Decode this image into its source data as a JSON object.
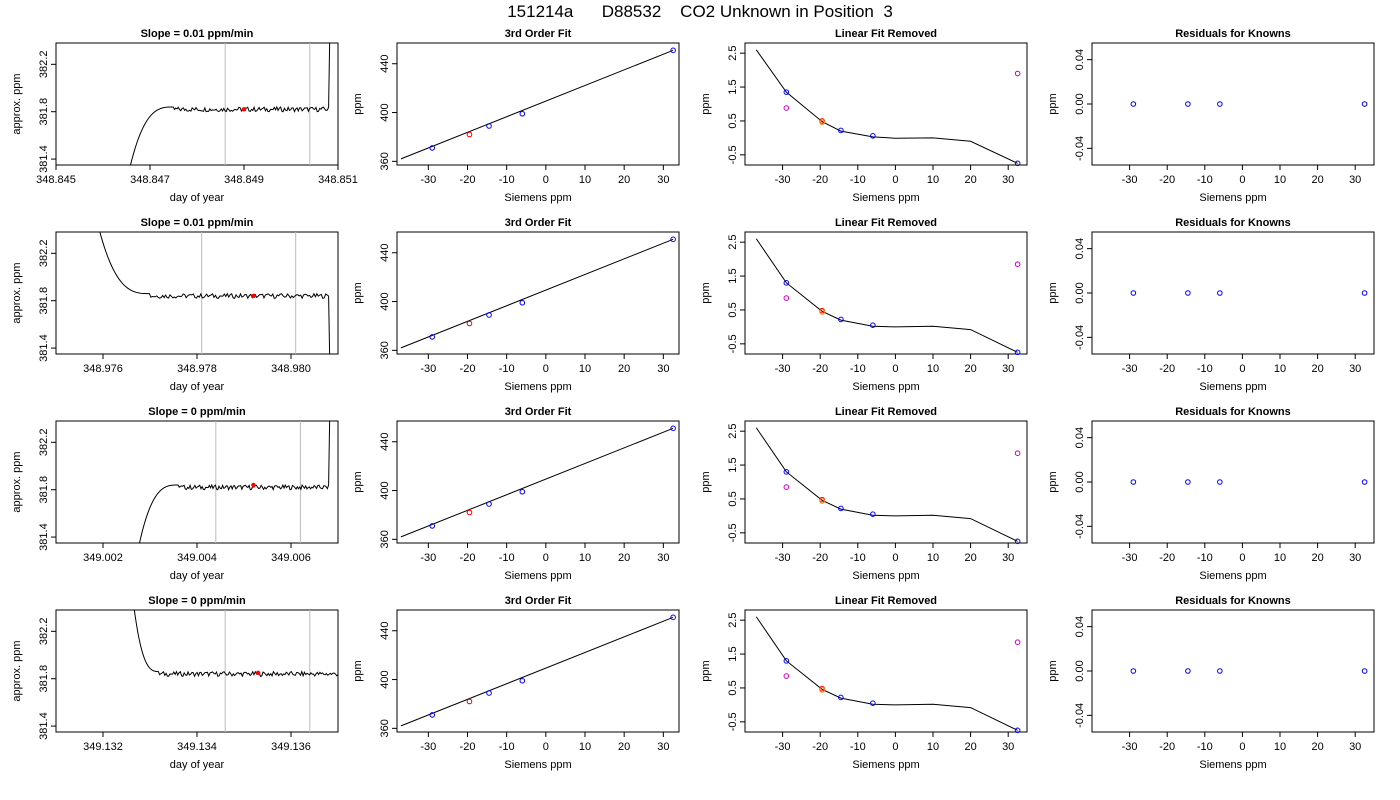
{
  "title": "151214a      D88532    CO2 Unknown in Position  3",
  "chart_data": [
    {
      "type": "line",
      "row": 0,
      "panel": "trace",
      "title": "Slope =  0.01  ppm/min",
      "xlabel": "day of year",
      "ylabel": "approx. ppm",
      "xlim": [
        348.845,
        348.851
      ],
      "ylim": [
        381.35,
        382.38
      ],
      "xticks": [
        "348.845",
        "348.847",
        "348.849",
        "348.851"
      ],
      "yticks": [
        "381.4",
        "381.8",
        "382.2"
      ],
      "vlines": [
        348.8486,
        348.8504
      ],
      "marker": {
        "x": 348.849,
        "y": 381.82,
        "color": "#ff0000"
      },
      "trace": {
        "start": 348.8465,
        "rise_end": 348.8475,
        "flat_end": 348.8508,
        "level": 381.84,
        "behavior": "rise_flat_rise"
      }
    },
    {
      "type": "scatter",
      "row": 0,
      "panel": "fit",
      "title": "3rd Order Fit",
      "xlabel": "Siemens ppm",
      "ylabel": "ppm",
      "xlim": [
        -38,
        34
      ],
      "ylim": [
        357,
        457
      ],
      "xticks": [
        "-30",
        "-20",
        "-10",
        "0",
        "10",
        "20",
        "30"
      ],
      "yticks": [
        "360",
        "400",
        "440"
      ],
      "line": [
        [
          -37,
          362
        ],
        [
          32.5,
          451
        ]
      ],
      "points": [
        {
          "x": -29,
          "y": 371,
          "color": "#0000ff"
        },
        {
          "x": -19.5,
          "y": 382,
          "color": "#ff0000"
        },
        {
          "x": -14.5,
          "y": 389,
          "color": "#0000ff"
        },
        {
          "x": -6,
          "y": 399,
          "color": "#0000ff"
        },
        {
          "x": 32.5,
          "y": 451,
          "color": "#0000ff"
        }
      ]
    },
    {
      "type": "scatter",
      "row": 0,
      "panel": "linfit",
      "title": "Linear Fit Removed",
      "xlabel": "Siemens ppm",
      "ylabel": "ppm",
      "xlim": [
        -40,
        35
      ],
      "ylim": [
        -0.8,
        2.8
      ],
      "xticks": [
        "-30",
        "-20",
        "-10",
        "0",
        "10",
        "20",
        "30"
      ],
      "yticks": [
        "-0.5",
        "0.5",
        "1.5",
        "2.5"
      ],
      "curve": [
        [
          -37,
          2.6
        ],
        [
          -29,
          1.35
        ],
        [
          -19.5,
          0.48
        ],
        [
          -14.5,
          0.2
        ],
        [
          -6,
          0.03
        ],
        [
          0,
          -0.01
        ],
        [
          10,
          0.0
        ],
        [
          20,
          -0.1
        ],
        [
          32.5,
          -0.75
        ]
      ],
      "points": [
        {
          "x": -29,
          "y": 1.35,
          "color": "#0000ff"
        },
        {
          "x": -29,
          "y": 0.88,
          "color": "#cc00cc"
        },
        {
          "x": -19.5,
          "y": 0.5,
          "color": "#ff0000"
        },
        {
          "x": -19.5,
          "y": 0.46,
          "color": "#ff8800"
        },
        {
          "x": -14.5,
          "y": 0.22,
          "color": "#0000ff"
        },
        {
          "x": -6,
          "y": 0.06,
          "color": "#0000ff"
        },
        {
          "x": 32.5,
          "y": 1.9,
          "color": "#cc00cc"
        },
        {
          "x": 32.5,
          "y": -0.75,
          "color": "#0000ff"
        }
      ]
    },
    {
      "type": "scatter",
      "row": 0,
      "panel": "resid",
      "title": "Residuals for Knowns",
      "xlabel": "Siemens ppm",
      "ylabel": "ppm",
      "xlim": [
        -40,
        35
      ],
      "ylim": [
        -0.055,
        0.055
      ],
      "xticks": [
        "-30",
        "-20",
        "-10",
        "0",
        "10",
        "20",
        "30"
      ],
      "yticks": [
        "-0.04",
        "0.00",
        "0.04"
      ],
      "points": [
        {
          "x": -29,
          "y": 0,
          "color": "#0000ff"
        },
        {
          "x": -14.5,
          "y": 0,
          "color": "#0000ff"
        },
        {
          "x": -6,
          "y": 0,
          "color": "#0000ff"
        },
        {
          "x": 32.5,
          "y": 0,
          "color": "#0000ff"
        }
      ]
    },
    {
      "type": "line",
      "row": 1,
      "panel": "trace",
      "title": "Slope =  0.01  ppm/min",
      "xlabel": "day of year",
      "ylabel": "approx. ppm",
      "xlim": [
        348.975,
        348.981
      ],
      "ylim": [
        381.35,
        382.38
      ],
      "xticks": [
        "348.976",
        "348.978",
        "348.980"
      ],
      "yticks": [
        "381.4",
        "381.8",
        "382.2"
      ],
      "vlines": [
        348.9781,
        348.9801
      ],
      "marker": {
        "x": 348.9792,
        "y": 381.84,
        "color": "#ff0000"
      },
      "trace": {
        "start": 348.9758,
        "rise_end": 348.977,
        "flat_end": 348.9808,
        "level": 381.86,
        "behavior": "fall_flat_fall"
      }
    },
    {
      "type": "scatter",
      "row": 1,
      "panel": "fit",
      "title": "3rd Order Fit",
      "xlabel": "Siemens ppm",
      "ylabel": "ppm",
      "xlim": [
        -38,
        34
      ],
      "ylim": [
        357,
        457
      ],
      "xticks": [
        "-30",
        "-20",
        "-10",
        "0",
        "10",
        "20",
        "30"
      ],
      "yticks": [
        "360",
        "400",
        "440"
      ],
      "line": [
        [
          -37,
          362
        ],
        [
          32.5,
          451
        ]
      ],
      "points": [
        {
          "x": -29,
          "y": 371,
          "color": "#0000ff"
        },
        {
          "x": -19.5,
          "y": 382,
          "color": "#ff0000"
        },
        {
          "x": -14.5,
          "y": 389,
          "color": "#0000ff"
        },
        {
          "x": -6,
          "y": 399,
          "color": "#0000ff"
        },
        {
          "x": 32.5,
          "y": 451,
          "color": "#0000ff"
        }
      ]
    },
    {
      "type": "scatter",
      "row": 1,
      "panel": "linfit",
      "title": "Linear Fit Removed",
      "xlabel": "Siemens ppm",
      "ylabel": "ppm",
      "xlim": [
        -40,
        35
      ],
      "ylim": [
        -0.8,
        2.8
      ],
      "xticks": [
        "-30",
        "-20",
        "-10",
        "0",
        "10",
        "20",
        "30"
      ],
      "yticks": [
        "-0.5",
        "0.5",
        "1.5",
        "2.5"
      ],
      "curve": [
        [
          -37,
          2.6
        ],
        [
          -29,
          1.3
        ],
        [
          -19.5,
          0.46
        ],
        [
          -14.5,
          0.2
        ],
        [
          -6,
          0.02
        ],
        [
          0,
          0.0
        ],
        [
          10,
          0.02
        ],
        [
          20,
          -0.08
        ],
        [
          32.5,
          -0.75
        ]
      ],
      "points": [
        {
          "x": -29,
          "y": 1.3,
          "color": "#0000ff"
        },
        {
          "x": -29,
          "y": 0.85,
          "color": "#cc00cc"
        },
        {
          "x": -19.5,
          "y": 0.48,
          "color": "#ff0000"
        },
        {
          "x": -19.5,
          "y": 0.44,
          "color": "#ff8800"
        },
        {
          "x": -14.5,
          "y": 0.22,
          "color": "#0000ff"
        },
        {
          "x": -6,
          "y": 0.05,
          "color": "#0000ff"
        },
        {
          "x": 32.5,
          "y": 1.85,
          "color": "#cc00cc"
        },
        {
          "x": 32.5,
          "y": -0.75,
          "color": "#0000ff"
        }
      ]
    },
    {
      "type": "scatter",
      "row": 1,
      "panel": "resid",
      "title": "Residuals for Knowns",
      "xlabel": "Siemens ppm",
      "ylabel": "ppm",
      "xlim": [
        -40,
        35
      ],
      "ylim": [
        -0.055,
        0.055
      ],
      "xticks": [
        "-30",
        "-20",
        "-10",
        "0",
        "10",
        "20",
        "30"
      ],
      "yticks": [
        "-0.04",
        "0.00",
        "0.04"
      ],
      "points": [
        {
          "x": -29,
          "y": 0,
          "color": "#0000ff"
        },
        {
          "x": -14.5,
          "y": 0,
          "color": "#0000ff"
        },
        {
          "x": -6,
          "y": 0,
          "color": "#0000ff"
        },
        {
          "x": 32.5,
          "y": 0,
          "color": "#0000ff"
        }
      ]
    },
    {
      "type": "line",
      "row": 2,
      "panel": "trace",
      "title": "Slope =  0  ppm/min",
      "xlabel": "day of year",
      "ylabel": "approx. ppm",
      "xlim": [
        349.001,
        349.007
      ],
      "ylim": [
        381.35,
        382.38
      ],
      "xticks": [
        "349.002",
        "349.004",
        "349.006"
      ],
      "yticks": [
        "381.4",
        "381.8",
        "382.2"
      ],
      "vlines": [
        349.0044,
        349.0062
      ],
      "marker": {
        "x": 349.0052,
        "y": 381.84,
        "color": "#ff0000"
      },
      "trace": {
        "start": 349.0027,
        "rise_end": 349.0036,
        "flat_end": 349.0068,
        "level": 381.84,
        "behavior": "rise_flat_rise"
      }
    },
    {
      "type": "scatter",
      "row": 2,
      "panel": "fit",
      "title": "3rd Order Fit",
      "xlabel": "Siemens ppm",
      "ylabel": "ppm",
      "xlim": [
        -38,
        34
      ],
      "ylim": [
        357,
        457
      ],
      "xticks": [
        "-30",
        "-20",
        "-10",
        "0",
        "10",
        "20",
        "30"
      ],
      "yticks": [
        "360",
        "400",
        "440"
      ],
      "line": [
        [
          -37,
          362
        ],
        [
          32.5,
          451
        ]
      ],
      "points": [
        {
          "x": -29,
          "y": 371,
          "color": "#0000ff"
        },
        {
          "x": -19.5,
          "y": 382,
          "color": "#ff0000"
        },
        {
          "x": -14.5,
          "y": 389,
          "color": "#0000ff"
        },
        {
          "x": -6,
          "y": 399,
          "color": "#0000ff"
        },
        {
          "x": 32.5,
          "y": 451,
          "color": "#0000ff"
        }
      ]
    },
    {
      "type": "scatter",
      "row": 2,
      "panel": "linfit",
      "title": "Linear Fit Removed",
      "xlabel": "Siemens ppm",
      "ylabel": "ppm",
      "xlim": [
        -40,
        35
      ],
      "ylim": [
        -0.8,
        2.8
      ],
      "xticks": [
        "-30",
        "-20",
        "-10",
        "0",
        "10",
        "20",
        "30"
      ],
      "yticks": [
        "-0.5",
        "0.5",
        "1.5",
        "2.5"
      ],
      "curve": [
        [
          -37,
          2.6
        ],
        [
          -29,
          1.3
        ],
        [
          -19.5,
          0.46
        ],
        [
          -14.5,
          0.2
        ],
        [
          -6,
          0.02
        ],
        [
          0,
          0.0
        ],
        [
          10,
          0.02
        ],
        [
          20,
          -0.08
        ],
        [
          32.5,
          -0.75
        ]
      ],
      "points": [
        {
          "x": -29,
          "y": 1.3,
          "color": "#0000ff"
        },
        {
          "x": -29,
          "y": 0.85,
          "color": "#cc00cc"
        },
        {
          "x": -19.5,
          "y": 0.48,
          "color": "#ff0000"
        },
        {
          "x": -19.5,
          "y": 0.44,
          "color": "#ff8800"
        },
        {
          "x": -14.5,
          "y": 0.22,
          "color": "#0000ff"
        },
        {
          "x": -6,
          "y": 0.05,
          "color": "#0000ff"
        },
        {
          "x": 32.5,
          "y": 1.85,
          "color": "#cc00cc"
        },
        {
          "x": 32.5,
          "y": -0.75,
          "color": "#0000ff"
        }
      ]
    },
    {
      "type": "scatter",
      "row": 2,
      "panel": "resid",
      "title": "Residuals for Knowns",
      "xlabel": "Siemens ppm",
      "ylabel": "ppm",
      "xlim": [
        -40,
        35
      ],
      "ylim": [
        -0.055,
        0.055
      ],
      "xticks": [
        "-30",
        "-20",
        "-10",
        "0",
        "10",
        "20",
        "30"
      ],
      "yticks": [
        "-0.04",
        "0.00",
        "0.04"
      ],
      "points": [
        {
          "x": -29,
          "y": 0,
          "color": "#0000ff"
        },
        {
          "x": -14.5,
          "y": 0,
          "color": "#0000ff"
        },
        {
          "x": -6,
          "y": 0,
          "color": "#0000ff"
        },
        {
          "x": 32.5,
          "y": 0,
          "color": "#0000ff"
        }
      ]
    },
    {
      "type": "line",
      "row": 3,
      "panel": "trace",
      "title": "Slope =  0  ppm/min",
      "xlabel": "day of year",
      "ylabel": "approx. ppm",
      "xlim": [
        349.131,
        349.137
      ],
      "ylim": [
        381.35,
        382.38
      ],
      "xticks": [
        "349.132",
        "349.134",
        "349.136"
      ],
      "yticks": [
        "381.4",
        "381.8",
        "382.2"
      ],
      "vlines": [
        349.1346,
        349.1364
      ],
      "marker": {
        "x": 349.1353,
        "y": 381.85,
        "color": "#ff0000"
      },
      "trace": {
        "start": 349.1326,
        "rise_end": 349.1332,
        "flat_end": 349.137,
        "level": 381.86,
        "behavior": "fall_flat_fall"
      }
    },
    {
      "type": "scatter",
      "row": 3,
      "panel": "fit",
      "title": "3rd Order Fit",
      "xlabel": "Siemens ppm",
      "ylabel": "ppm",
      "xlim": [
        -38,
        34
      ],
      "ylim": [
        357,
        457
      ],
      "xticks": [
        "-30",
        "-20",
        "-10",
        "0",
        "10",
        "20",
        "30"
      ],
      "yticks": [
        "360",
        "400",
        "440"
      ],
      "line": [
        [
          -37,
          362
        ],
        [
          32.5,
          451
        ]
      ],
      "points": [
        {
          "x": -29,
          "y": 371,
          "color": "#0000ff"
        },
        {
          "x": -19.5,
          "y": 382,
          "color": "#ff0000"
        },
        {
          "x": -14.5,
          "y": 389,
          "color": "#0000ff"
        },
        {
          "x": -6,
          "y": 399,
          "color": "#0000ff"
        },
        {
          "x": 32.5,
          "y": 451,
          "color": "#0000ff"
        }
      ]
    },
    {
      "type": "scatter",
      "row": 3,
      "panel": "linfit",
      "title": "Linear Fit Removed",
      "xlabel": "Siemens ppm",
      "ylabel": "ppm",
      "xlim": [
        -40,
        35
      ],
      "ylim": [
        -0.8,
        2.8
      ],
      "xticks": [
        "-30",
        "-20",
        "-10",
        "0",
        "10",
        "20",
        "30"
      ],
      "yticks": [
        "-0.5",
        "0.5",
        "1.5",
        "2.5"
      ],
      "curve": [
        [
          -37,
          2.6
        ],
        [
          -29,
          1.3
        ],
        [
          -19.5,
          0.46
        ],
        [
          -14.5,
          0.2
        ],
        [
          -6,
          0.02
        ],
        [
          0,
          0.0
        ],
        [
          10,
          0.02
        ],
        [
          20,
          -0.08
        ],
        [
          32.5,
          -0.75
        ]
      ],
      "points": [
        {
          "x": -29,
          "y": 1.3,
          "color": "#0000ff"
        },
        {
          "x": -29,
          "y": 0.85,
          "color": "#cc00cc"
        },
        {
          "x": -19.5,
          "y": 0.48,
          "color": "#ff0000"
        },
        {
          "x": -19.5,
          "y": 0.44,
          "color": "#ff8800"
        },
        {
          "x": -14.5,
          "y": 0.22,
          "color": "#0000ff"
        },
        {
          "x": -6,
          "y": 0.05,
          "color": "#0000ff"
        },
        {
          "x": 32.5,
          "y": 1.85,
          "color": "#cc00cc"
        },
        {
          "x": 32.5,
          "y": -0.75,
          "color": "#0000ff"
        }
      ]
    },
    {
      "type": "scatter",
      "row": 3,
      "panel": "resid",
      "title": "Residuals for Knowns",
      "xlabel": "Siemens ppm",
      "ylabel": "ppm",
      "xlim": [
        -40,
        35
      ],
      "ylim": [
        -0.055,
        0.055
      ],
      "xticks": [
        "-30",
        "-20",
        "-10",
        "0",
        "10",
        "20",
        "30"
      ],
      "yticks": [
        "-0.04",
        "0.00",
        "0.04"
      ],
      "points": [
        {
          "x": -29,
          "y": 0,
          "color": "#0000ff"
        },
        {
          "x": -14.5,
          "y": 0,
          "color": "#0000ff"
        },
        {
          "x": -6,
          "y": 0,
          "color": "#0000ff"
        },
        {
          "x": 32.5,
          "y": 0,
          "color": "#0000ff"
        }
      ]
    }
  ]
}
